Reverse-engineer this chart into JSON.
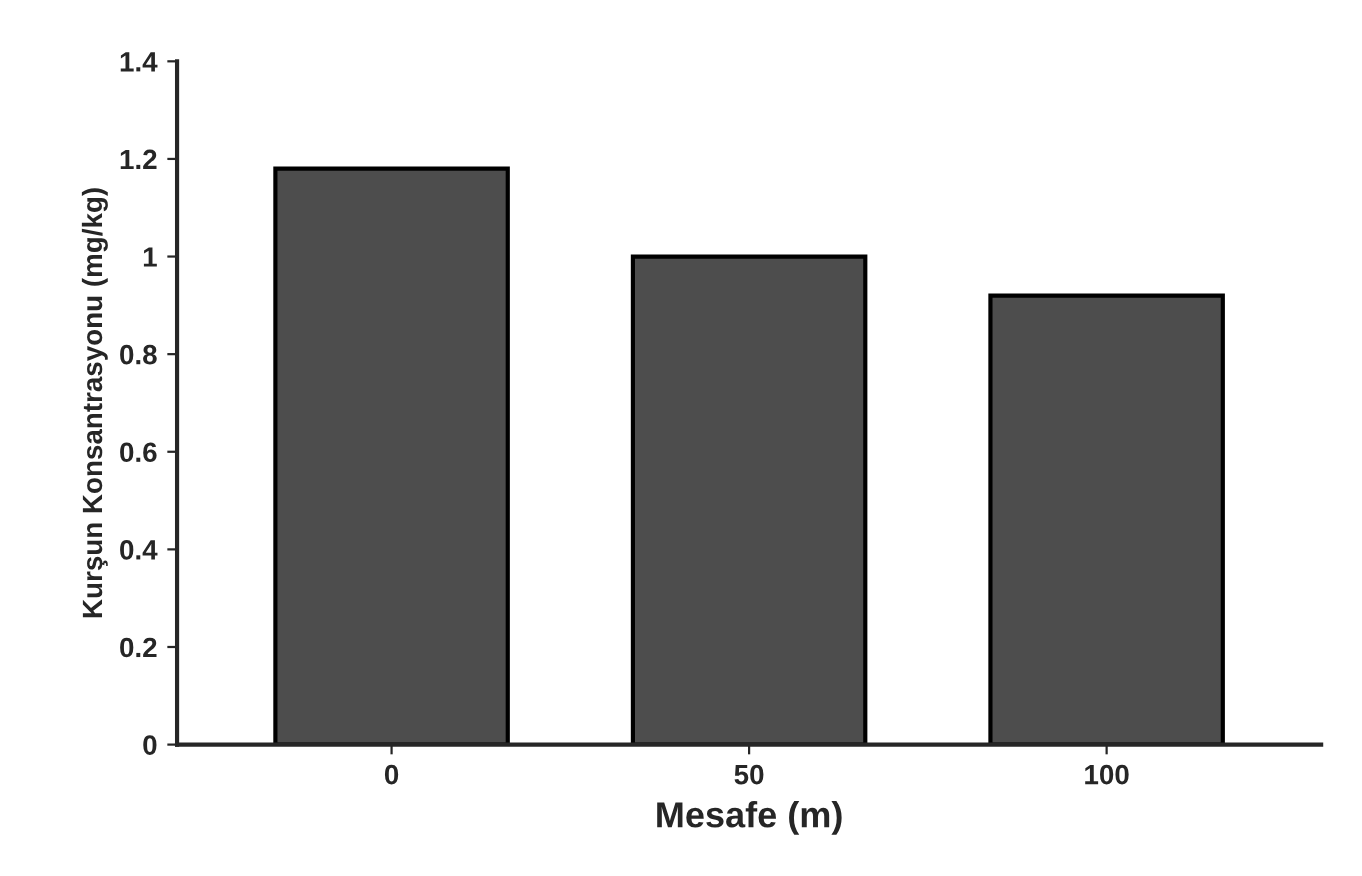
{
  "chart_data": {
    "type": "bar",
    "xlabel": "Mesafe (m)",
    "ylabel": "Kurşun Konsantrasyonu (mg/kg)",
    "categories": [
      "0",
      "50",
      "100"
    ],
    "values": [
      1.18,
      1.0,
      0.92
    ],
    "color": "#4d4d4d",
    "ylim": [
      0,
      1.4
    ],
    "yticks": [
      0,
      0.2,
      0.4,
      0.6,
      0.8,
      1,
      1.2,
      1.4
    ],
    "grid": false
  }
}
